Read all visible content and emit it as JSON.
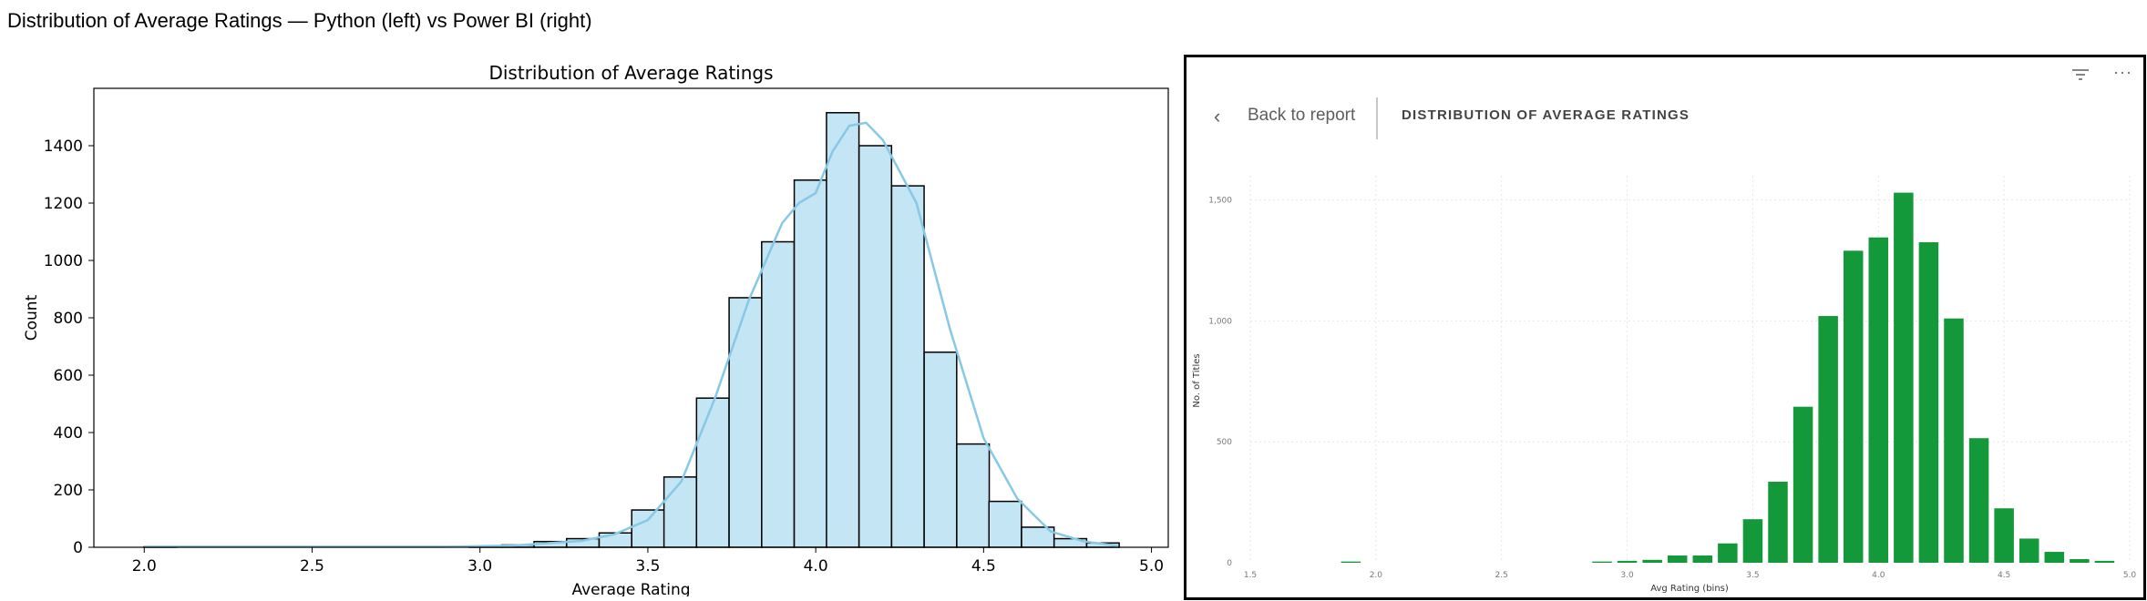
{
  "page": {
    "title": "Distribution of Average Ratings — Python (left) vs Power BI (right)"
  },
  "pbi": {
    "back_label": "Back to report",
    "visual_title": "DISTRIBUTION OF AVERAGE RATINGS",
    "icons": {
      "back": "chevron-left-icon",
      "filter": "filter-icon",
      "more": "more-options-icon"
    }
  },
  "chart_data": [
    {
      "type": "bar",
      "title": "Distribution of Average Ratings",
      "xlabel": "Average Rating",
      "ylabel": "Count",
      "xlim": [
        1.85,
        5.05
      ],
      "ylim": [
        0,
        1600
      ],
      "xticks": [
        "2.0",
        "2.5",
        "3.0",
        "3.5",
        "4.0",
        "4.5",
        "5.0"
      ],
      "yticks": [
        "0",
        "200",
        "400",
        "600",
        "800",
        "1000",
        "1200",
        "1400"
      ],
      "bin_width": 0.0968,
      "bins_start": [
        2.0,
        2.097,
        2.194,
        2.29,
        2.387,
        2.484,
        2.581,
        2.678,
        2.774,
        2.871,
        2.968,
        3.065,
        3.161,
        3.258,
        3.355,
        3.452,
        3.548,
        3.645,
        3.742,
        3.839,
        3.936,
        4.032,
        4.129,
        4.226,
        4.323,
        4.42,
        4.516,
        4.613,
        4.71,
        4.807
      ],
      "counts": [
        2,
        0,
        0,
        0,
        0,
        0,
        0,
        0,
        0,
        0,
        3,
        8,
        20,
        30,
        50,
        130,
        245,
        520,
        870,
        1065,
        1280,
        1515,
        1400,
        1260,
        680,
        360,
        160,
        70,
        30,
        15
      ],
      "kde": [
        [
          2.0,
          2
        ],
        [
          2.9,
          2
        ],
        [
          3.1,
          6
        ],
        [
          3.3,
          22
        ],
        [
          3.4,
          45
        ],
        [
          3.5,
          95
        ],
        [
          3.6,
          230
        ],
        [
          3.7,
          520
        ],
        [
          3.8,
          860
        ],
        [
          3.9,
          1130
        ],
        [
          3.95,
          1200
        ],
        [
          4.0,
          1235
        ],
        [
          4.05,
          1380
        ],
        [
          4.1,
          1470
        ],
        [
          4.15,
          1480
        ],
        [
          4.2,
          1420
        ],
        [
          4.3,
          1200
        ],
        [
          4.4,
          760
        ],
        [
          4.5,
          380
        ],
        [
          4.6,
          170
        ],
        [
          4.7,
          55
        ],
        [
          4.8,
          20
        ],
        [
          4.9,
          5
        ]
      ],
      "bar_color": "#c3e5f4",
      "edge_color": "#000000",
      "line_color": "#87c8e6",
      "grid": false,
      "legend": "none"
    },
    {
      "type": "bar",
      "xlabel": "Avg Rating (bins)",
      "ylabel": "No. of Titles",
      "xlim": [
        1.5,
        5.0
      ],
      "ylim": [
        0,
        1600
      ],
      "xticks": [
        "1.5",
        "2.0",
        "2.5",
        "3.0",
        "3.5",
        "4.0",
        "4.5",
        "5.0"
      ],
      "yticks": [
        "0",
        "500",
        "1,000",
        "1,500"
      ],
      "bin_width": 0.1,
      "bins_center": [
        1.9,
        2.9,
        3.0,
        3.1,
        3.2,
        3.3,
        3.4,
        3.5,
        3.6,
        3.7,
        3.8,
        3.9,
        4.0,
        4.1,
        4.2,
        4.3,
        4.4,
        4.5,
        4.6,
        4.7,
        4.8,
        4.9
      ],
      "counts": [
        5,
        5,
        8,
        12,
        30,
        30,
        80,
        180,
        335,
        645,
        1020,
        1290,
        1345,
        1530,
        1325,
        1010,
        515,
        225,
        100,
        45,
        15,
        8
      ],
      "bar_color": "#13993a",
      "grid": true,
      "legend": "none"
    }
  ]
}
